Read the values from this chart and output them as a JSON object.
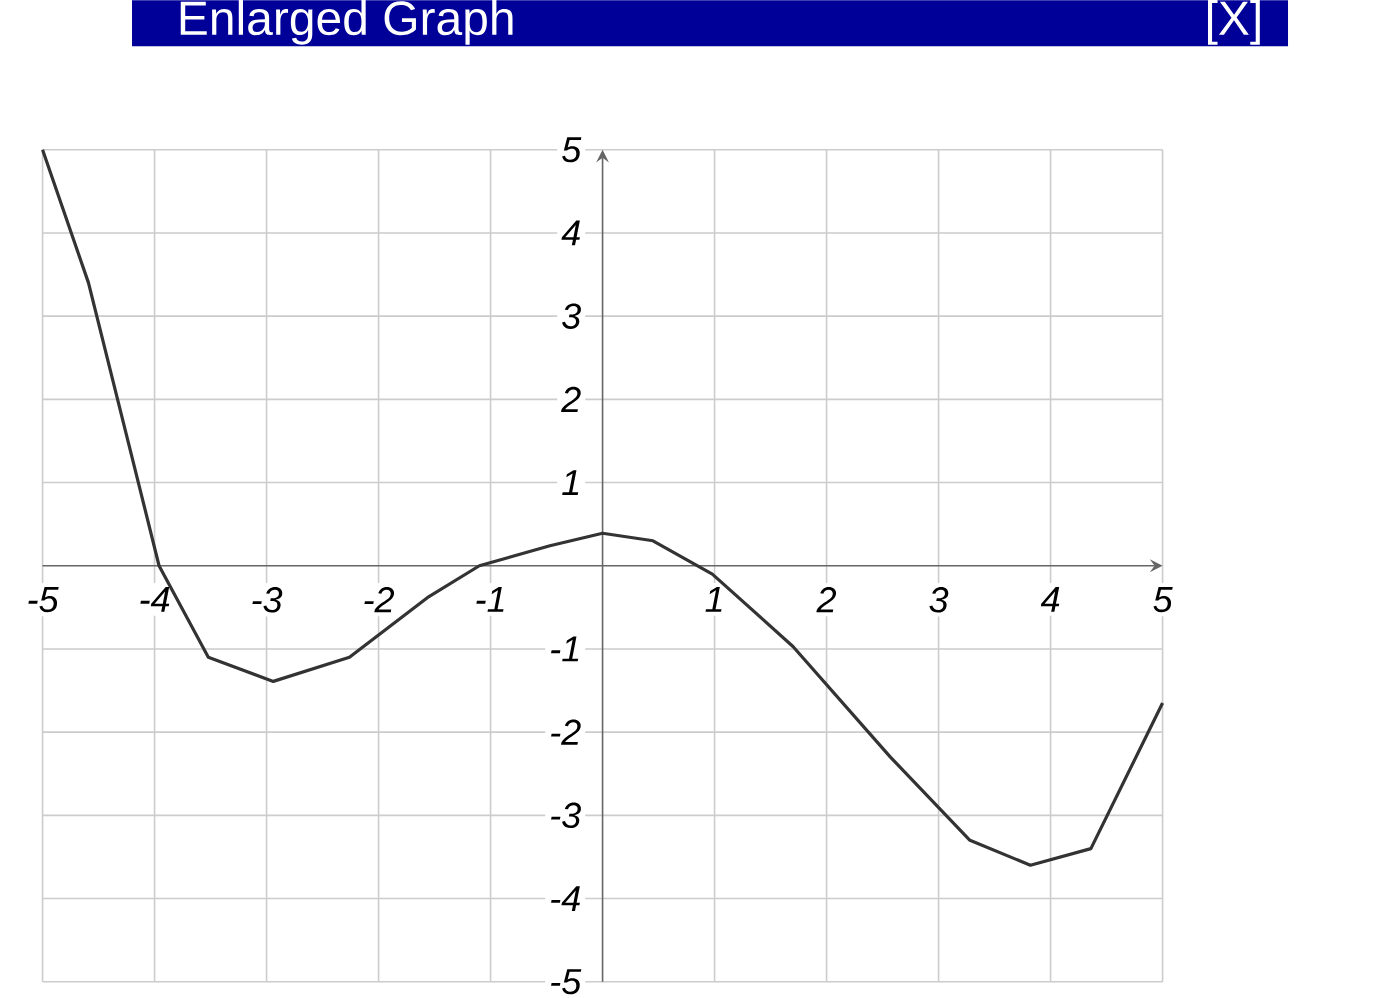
{
  "chart_data": {
    "type": "line",
    "title": "Enlarged Graph",
    "annotations": [
      "[X]"
    ],
    "x": [
      -5,
      -4.59,
      -4.23,
      -3.96,
      -3.52,
      -2.94,
      -2.26,
      -1.55,
      -1.1,
      -0.47,
      0,
      0.45,
      0.98,
      1.7,
      2.57,
      3.28,
      3.82,
      4.36,
      5
    ],
    "values": [
      5,
      3.4,
      1.46,
      0,
      -1.1,
      -1.39,
      -1.1,
      -0.37,
      0,
      0.24,
      0.39,
      0.3,
      -0.1,
      -0.97,
      -2.3,
      -3.3,
      -3.6,
      -3.4,
      -1.65
    ],
    "color": "#333333",
    "xlim": [
      -5,
      5
    ],
    "ylim": [
      -5,
      5
    ],
    "xticks": [
      -5,
      -4,
      -3,
      -2,
      -1,
      1,
      2,
      3,
      4,
      5
    ],
    "yticks": [
      -5,
      -4,
      -3,
      -2,
      -1,
      1,
      2,
      3,
      4,
      5
    ],
    "grid": true,
    "marker": "none",
    "line_style": "solid"
  }
}
